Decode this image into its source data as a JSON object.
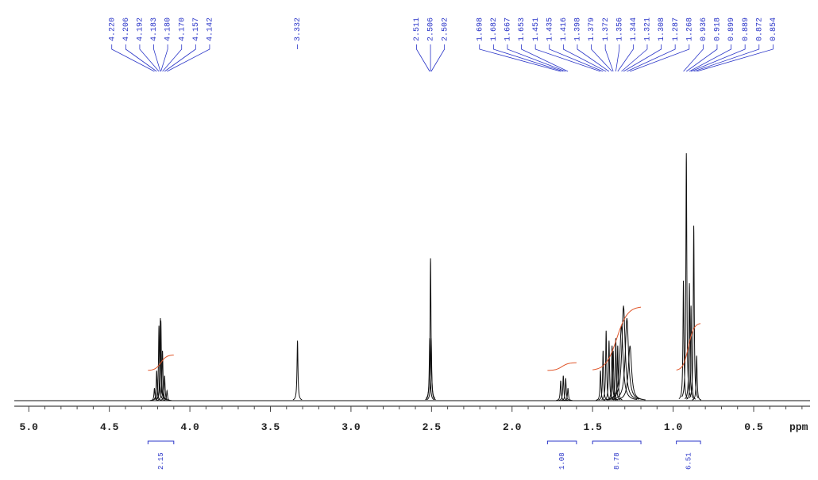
{
  "chart_data": {
    "type": "nmr",
    "x_axis_label": "ppm",
    "xlim": [
      5.09,
      0.15
    ],
    "ylim": [
      0,
      100
    ],
    "xticks": [
      {
        "value": 5,
        "label": "5.0"
      },
      4.5,
      {
        "value": 4,
        "label": "4.0"
      },
      3.5,
      {
        "value": 3,
        "label": "3.0"
      },
      2.5,
      {
        "value": 2,
        "label": "2.0"
      },
      1.5,
      {
        "value": 1,
        "label": "1.0"
      },
      0.5
    ],
    "xminorticks": [
      4.9,
      4.8,
      4.7,
      4.6,
      4.4,
      4.3,
      4.2,
      4.1,
      3.9,
      3.8,
      3.7,
      3.6,
      3.4,
      3.3,
      3.2,
      3.1,
      2.9,
      2.8,
      2.7,
      2.6,
      2.4,
      2.3,
      2.2,
      2.1,
      1.9,
      1.8,
      1.7,
      1.6,
      1.4,
      1.3,
      1.2,
      1.1,
      0.9,
      0.8,
      0.7,
      0.6,
      0.4,
      0.3,
      0.2
    ],
    "color": "#111111",
    "label_color": "#2a35c8",
    "integral_color": "#e0562a",
    "x": [
      4.22,
      4.206,
      4.192,
      4.183,
      4.18,
      4.17,
      4.157,
      4.142,
      3.332,
      2.511,
      2.506,
      2.502,
      1.698,
      1.682,
      1.667,
      1.653,
      1.451,
      1.435,
      1.416,
      1.398,
      1.379,
      1.372,
      1.356,
      1.344,
      1.321,
      1.308,
      1.287,
      1.268,
      0.936,
      0.918,
      0.899,
      0.889,
      0.872,
      0.854
    ],
    "x_labels": [
      "4.220",
      "4.206",
      "4.192",
      "4.183",
      "4.180",
      "4.170",
      "4.157",
      "4.142",
      "3.332",
      "2.511",
      "2.506",
      "2.502",
      "1.698",
      "1.682",
      "1.667",
      "1.653",
      "1.451",
      "1.435",
      "1.416",
      "1.398",
      "1.379",
      "1.372",
      "1.356",
      "1.344",
      "1.321",
      "1.308",
      "1.287",
      "1.268",
      "0.936",
      "0.918",
      "0.899",
      "0.889",
      "0.872",
      "0.854"
    ],
    "values": [
      5,
      12,
      30,
      33,
      32,
      20,
      10,
      4,
      24,
      25,
      57,
      25,
      8,
      10,
      9,
      5,
      12,
      20,
      28,
      24,
      22,
      20,
      25,
      22,
      30,
      38,
      33,
      22,
      48,
      99,
      47,
      38,
      70,
      18
    ],
    "integrals": [
      {
        "range": [
          4.26,
          4.1
        ],
        "value": 2.15,
        "label": "2.15"
      },
      {
        "range": [
          1.78,
          1.6
        ],
        "value": 1.08,
        "label": "1.08"
      },
      {
        "range": [
          1.5,
          1.2
        ],
        "value": 8.78,
        "label": "8.78"
      },
      {
        "range": [
          0.98,
          0.83
        ],
        "value": 6.51,
        "label": "6.51"
      }
    ]
  }
}
